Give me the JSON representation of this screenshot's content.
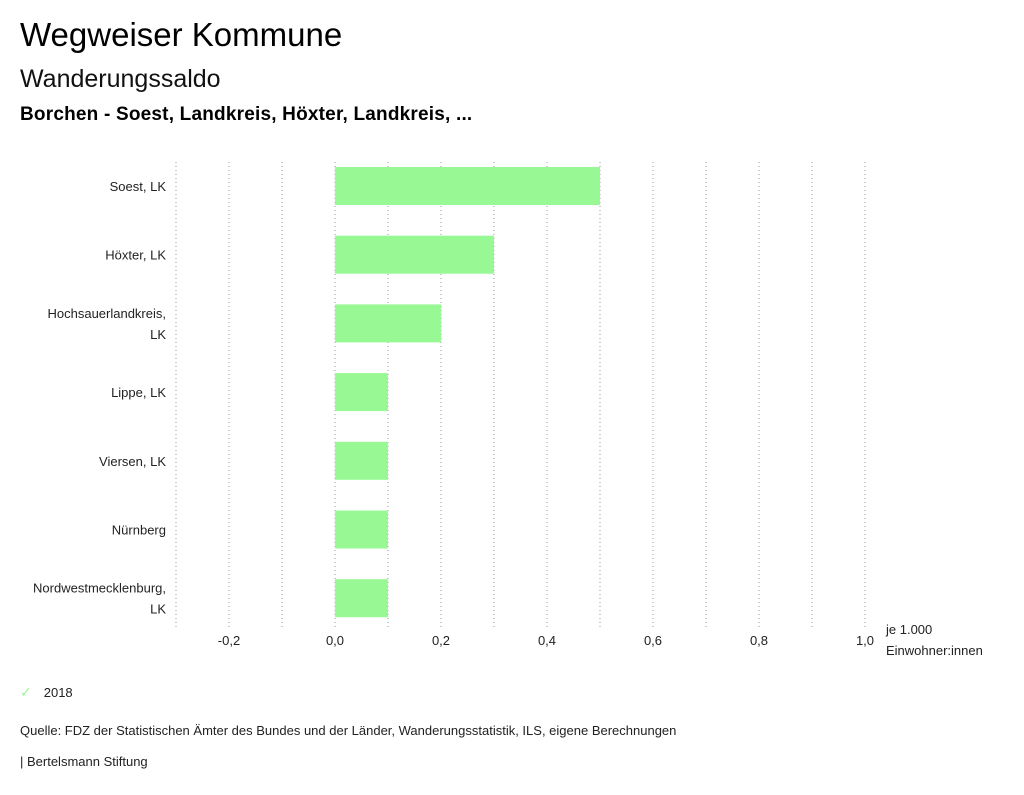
{
  "header": {
    "title": "Wegweiser Kommune",
    "subtitle": "Wanderungssaldo",
    "region": "Borchen - Soest, Landkreis, Höxter, Landkreis, ..."
  },
  "chart_data": {
    "type": "bar",
    "orientation": "horizontal",
    "categories": [
      [
        "Soest, LK"
      ],
      [
        "Höxter, LK"
      ],
      [
        "Hochsauerlandkreis,",
        "LK"
      ],
      [
        "Lippe, LK"
      ],
      [
        "Viersen, LK"
      ],
      [
        "Nürnberg"
      ],
      [
        "Nordwestmecklenburg,",
        "LK"
      ]
    ],
    "series": [
      {
        "name": "2018",
        "color": "#98f894",
        "values": [
          0.5,
          0.3,
          0.2,
          0.1,
          0.1,
          0.1,
          0.1
        ]
      }
    ],
    "xlim": [
      -0.3,
      1.0
    ],
    "xticks": [
      -0.2,
      0.0,
      0.2,
      0.4,
      0.6,
      0.8,
      1.0
    ],
    "xtick_labels": [
      "-0,2",
      "0,0",
      "0,2",
      "0,4",
      "0,6",
      "0,8",
      "1,0"
    ],
    "xlabel": [
      "je 1.000",
      "Einwohner:innen"
    ],
    "grid": true
  },
  "legend": {
    "label": "2018",
    "icon": "check-icon",
    "color": "#98f894"
  },
  "footer": {
    "source": "Quelle: FDZ der Statistischen Ämter des Bundes und der Länder, Wanderungsstatistik, ILS, eigene Berechnungen",
    "credit": "| Bertelsmann Stiftung"
  }
}
